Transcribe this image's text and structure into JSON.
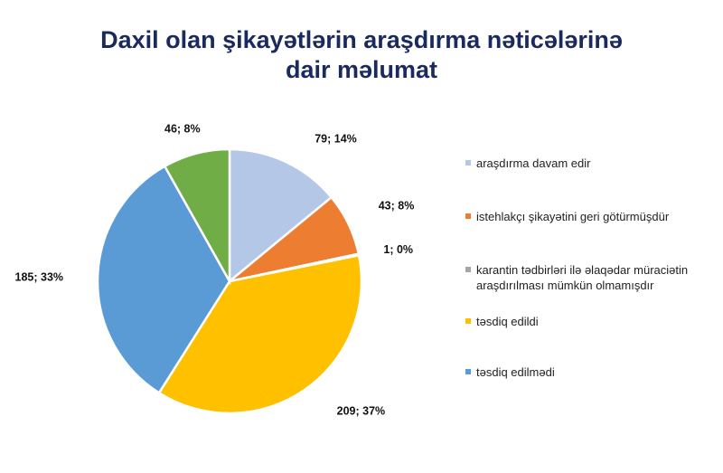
{
  "chart_data": {
    "type": "pie",
    "title": "Daxil olan şikayətlərin araşdırma nəticələrinə dair məlumat",
    "title_lines": [
      "Daxil olan şikayətlərin araşdırma nəticələrinə",
      "dair məlumat"
    ],
    "slices": [
      {
        "name": "araşdırma davam edir",
        "value": 79,
        "percent": "14%",
        "label": "79; 14%",
        "color": "#b4c7e7",
        "in_legend": true
      },
      {
        "name": "istehlakçı şikayətini geri götürmüşdür",
        "value": 43,
        "percent": "8%",
        "label": "43; 8%",
        "color": "#ed7d31",
        "in_legend": true
      },
      {
        "name": "karantin tədbirləri ilə əlaqədar müraciətin araşdırılması mümkün olmamışdır",
        "value": 1,
        "percent": "0%",
        "label": "1; 0%",
        "color": "#a5a5a5",
        "in_legend": true
      },
      {
        "name": "təsdiq edildi",
        "value": 209,
        "percent": "37%",
        "label": "209; 37%",
        "color": "#ffc000",
        "in_legend": true
      },
      {
        "name": "təsdiq edilmədi",
        "value": 185,
        "percent": "33%",
        "label": "185; 33%",
        "color": "#5b9bd5",
        "in_legend": true
      },
      {
        "name": "",
        "value": 46,
        "percent": "8%",
        "label": "46; 8%",
        "color": "#70ad47",
        "in_legend": false
      }
    ],
    "legend_placement": "right",
    "start": "top, clockwise"
  }
}
